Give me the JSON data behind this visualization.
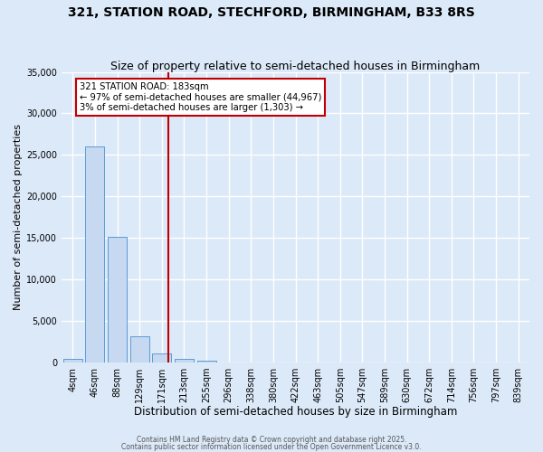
{
  "title1": "321, STATION ROAD, STECHFORD, BIRMINGHAM, B33 8RS",
  "title2": "Size of property relative to semi-detached houses in Birmingham",
  "xlabel": "Distribution of semi-detached houses by size in Birmingham",
  "ylabel": "Number of semi-detached properties",
  "bar_color": "#c6d9f1",
  "bar_edge_color": "#5b9bd5",
  "categories": [
    "4sqm",
    "46sqm",
    "88sqm",
    "129sqm",
    "171sqm",
    "213sqm",
    "255sqm",
    "296sqm",
    "338sqm",
    "380sqm",
    "422sqm",
    "463sqm",
    "505sqm",
    "547sqm",
    "589sqm",
    "630sqm",
    "672sqm",
    "714sqm",
    "756sqm",
    "797sqm",
    "839sqm"
  ],
  "values": [
    400,
    26000,
    15100,
    3200,
    1100,
    450,
    200,
    30,
    0,
    0,
    0,
    0,
    0,
    0,
    0,
    0,
    0,
    0,
    0,
    0,
    0
  ],
  "ylim": [
    0,
    35000
  ],
  "yticks": [
    0,
    5000,
    10000,
    15000,
    20000,
    25000,
    30000,
    35000
  ],
  "vline_x_idx": 4.3,
  "vline_color": "#c00000",
  "annotation_text": "321 STATION ROAD: 183sqm\n← 97% of semi-detached houses are smaller (44,967)\n3% of semi-detached houses are larger (1,303) →",
  "footer1": "Contains HM Land Registry data © Crown copyright and database right 2025.",
  "footer2": "Contains public sector information licensed under the Open Government Licence v3.0.",
  "background_color": "#dce9f8",
  "grid_color": "#ffffff",
  "title_fontsize": 10,
  "subtitle_fontsize": 9,
  "tick_fontsize": 7,
  "ylabel_fontsize": 8,
  "xlabel_fontsize": 8.5
}
